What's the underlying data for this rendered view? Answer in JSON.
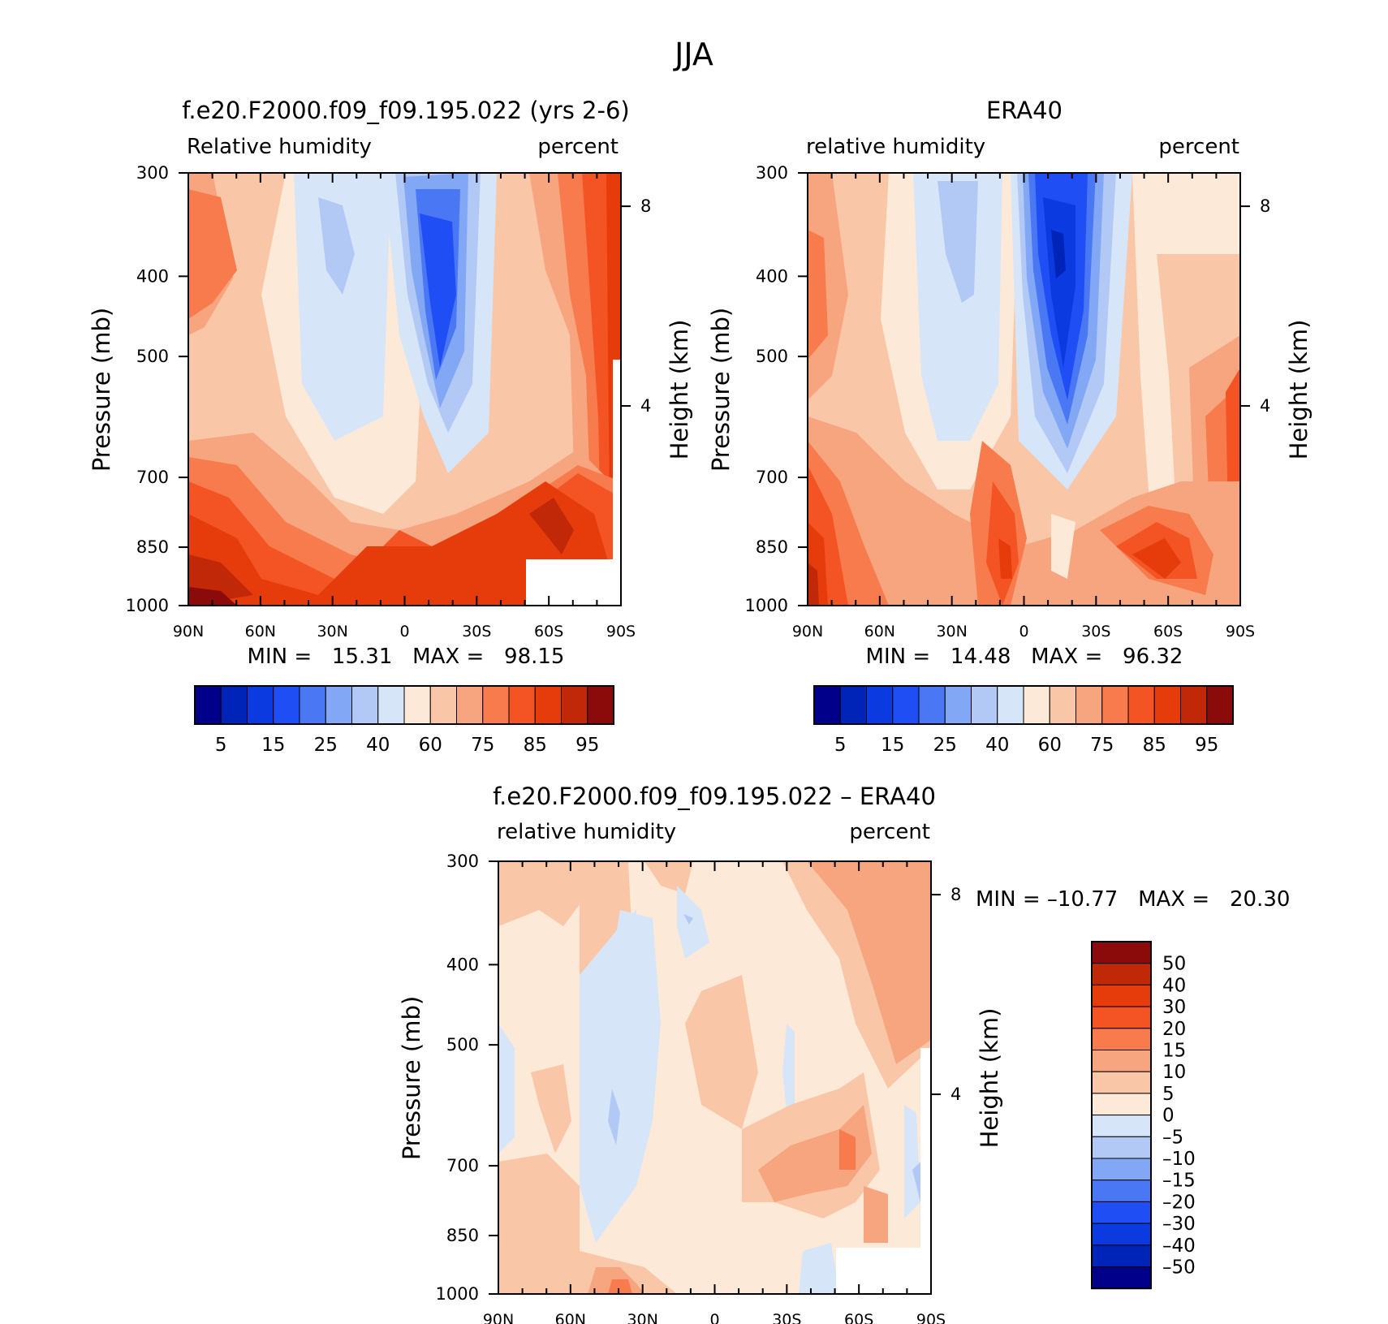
{
  "figure": {
    "title": "JJA"
  },
  "panels": {
    "model": {
      "title": "f.e20.F2000.f09_f09.195.022 (yrs 2-6)",
      "subtitle_left": "Relative humidity",
      "subtitle_right": "percent",
      "ylabel": "Pressure (mb)",
      "ylabel_right": "Height (km)",
      "min_max_text": "MIN =   15.31   MAX =   98.15"
    },
    "obs": {
      "title": "ERA40",
      "subtitle_left": "relative humidity",
      "subtitle_right": "percent",
      "ylabel": "Pressure (mb)",
      "ylabel_right": "Height (km)",
      "min_max_text": "MIN =   14.48   MAX =   96.32"
    },
    "diff": {
      "title": "f.e20.F2000.f09_f09.195.022 – ERA40",
      "subtitle_left": "relative humidity",
      "subtitle_right": "percent",
      "ylabel": "Pressure (mb)",
      "ylabel_right": "Height (km)",
      "min_max_text": "MIN = –10.77   MAX =   20.30"
    }
  },
  "axes": {
    "x_ticks": [
      "90N",
      "60N",
      "30N",
      "0",
      "30S",
      "60S",
      "90S"
    ],
    "y_ticks": [
      "300",
      "400",
      "500",
      "700",
      "850",
      "1000"
    ],
    "y_right_ticks": [
      "8",
      "4"
    ]
  },
  "colorbars": {
    "abs_labels": [
      "5",
      "15",
      "25",
      "40",
      "60",
      "75",
      "85",
      "95"
    ],
    "abs_colors": [
      "#00008b",
      "#0024b8",
      "#0a3ae0",
      "#1f4ef5",
      "#4a78f5",
      "#82a8f5",
      "#b2c9f5",
      "#d6e6f8",
      "#fde9d8",
      "#f9c7a8",
      "#f7a57e",
      "#f77b4c",
      "#f45324",
      "#e63c0c",
      "#c02808",
      "#8b0a0a"
    ],
    "diff_labels": [
      "50",
      "40",
      "30",
      "20",
      "15",
      "10",
      "5",
      "0",
      "–5",
      "–10",
      "–15",
      "–20",
      "–30",
      "–40",
      "–50"
    ],
    "diff_colors": [
      "#8b0a0a",
      "#c02808",
      "#e63c0c",
      "#f45324",
      "#f77b4c",
      "#f7a57e",
      "#f9c7a8",
      "#fde9d8",
      "#d6e6f8",
      "#b2c9f5",
      "#82a8f5",
      "#4a78f5",
      "#1f4ef5",
      "#0a3ae0",
      "#0024b8",
      "#00008b"
    ]
  },
  "chart_data": [
    {
      "type": "heatmap",
      "title": "f.e20.F2000.f09_f09.195.022 (yrs 2-6)",
      "subtitle": "Relative humidity (percent)",
      "xlabel": "",
      "ylabel": "Pressure (mb)",
      "ylabel_right": "Height (km)",
      "x": [
        90,
        60,
        30,
        0,
        -30,
        -60,
        -90
      ],
      "x_ticks": [
        "90N",
        "60N",
        "30N",
        "0",
        "30S",
        "60S",
        "90S"
      ],
      "y": [
        300,
        400,
        500,
        700,
        850,
        1000
      ],
      "values": [
        [
          68,
          55,
          45,
          58,
          25,
          55,
          85
        ],
        [
          75,
          58,
          42,
          62,
          18,
          57,
          88
        ],
        [
          73,
          62,
          45,
          65,
          28,
          64,
          88
        ],
        [
          68,
          65,
          50,
          70,
          35,
          68,
          90
        ],
        [
          88,
          72,
          62,
          80,
          55,
          86,
          92
        ],
        [
          95,
          82,
          78,
          84,
          75,
          null,
          null
        ]
      ],
      "min": 15.31,
      "max": 98.15
    },
    {
      "type": "heatmap",
      "title": "ERA40",
      "subtitle": "relative humidity (percent)",
      "xlabel": "",
      "ylabel": "Pressure (mb)",
      "ylabel_right": "Height (km)",
      "x": [
        90,
        60,
        30,
        0,
        -30,
        -60,
        -90
      ],
      "x_ticks": [
        "90N",
        "60N",
        "30N",
        "0",
        "30S",
        "60S",
        "90S"
      ],
      "y": [
        300,
        400,
        500,
        700,
        850,
        1000
      ],
      "values": [
        [
          62,
          60,
          50,
          55,
          22,
          50,
          55
        ],
        [
          72,
          62,
          45,
          58,
          18,
          55,
          62
        ],
        [
          70,
          62,
          48,
          60,
          25,
          58,
          68
        ],
        [
          70,
          65,
          52,
          70,
          38,
          62,
          75
        ],
        [
          85,
          78,
          68,
          82,
          60,
          82,
          85
        ],
        [
          88,
          80,
          72,
          86,
          75,
          88,
          90
        ]
      ],
      "min": 14.48,
      "max": 96.32
    },
    {
      "type": "heatmap",
      "title": "f.e20.F2000.f09_f09.195.022 – ERA40",
      "subtitle": "relative humidity (percent)",
      "xlabel": "",
      "ylabel": "Pressure (mb)",
      "ylabel_right": "Height (km)",
      "x": [
        90,
        60,
        30,
        0,
        -30,
        -60,
        -90
      ],
      "x_ticks": [
        "90N",
        "60N",
        "30N",
        "0",
        "30S",
        "60S",
        "90S"
      ],
      "y": [
        300,
        400,
        500,
        700,
        850,
        1000
      ],
      "values": [
        [
          6,
          5,
          3,
          3,
          2,
          8,
          12
        ],
        [
          5,
          2,
          -2,
          2,
          1,
          8,
          12
        ],
        [
          4,
          2,
          -3,
          3,
          2,
          9,
          12
        ],
        [
          -1,
          1,
          -4,
          3,
          1,
          8,
          7
        ],
        [
          4,
          3,
          -3,
          2,
          6,
          7,
          -2
        ],
        [
          7,
          5,
          3,
          2,
          2,
          null,
          null
        ]
      ],
      "min": -10.77,
      "max": 20.3
    }
  ]
}
